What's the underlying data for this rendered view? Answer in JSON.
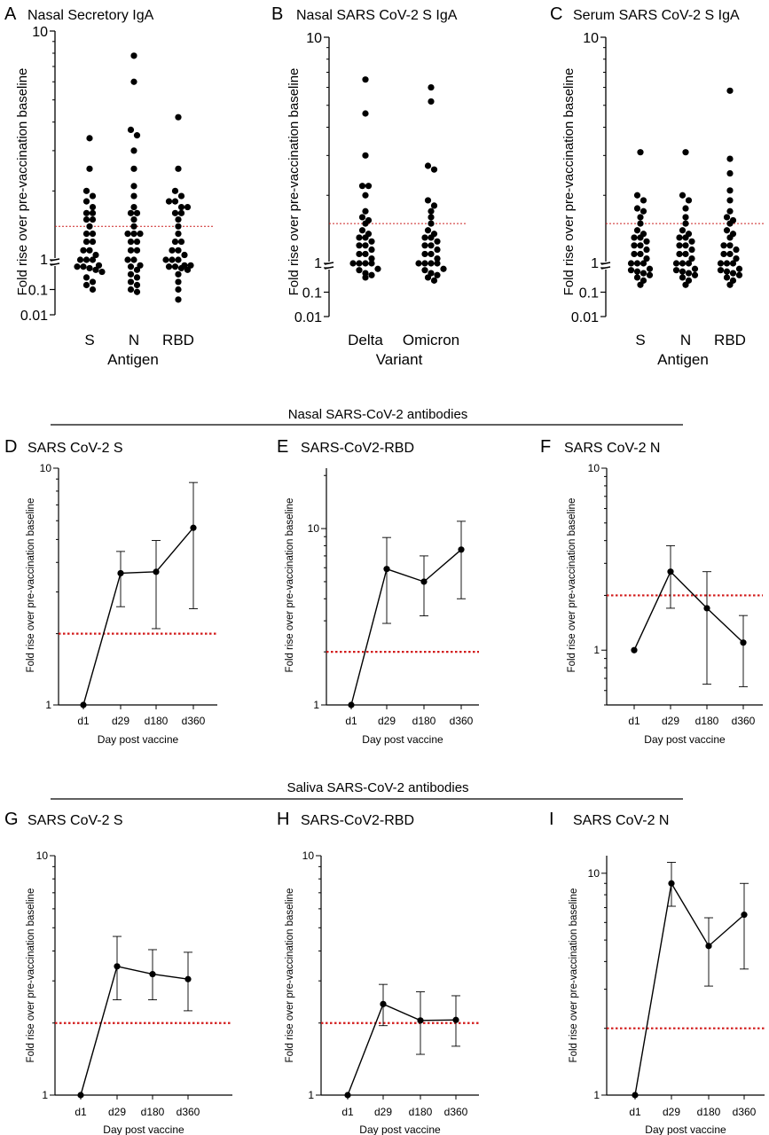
{
  "figure": {
    "section_headers": [
      "Nasal SARS-CoV-2 antibodies",
      "Saliva SARS-CoV-2 antibodies"
    ]
  },
  "chart_data": [
    {
      "panel": "A",
      "type": "scatter",
      "title": "Nasal Secretory IgA",
      "xlabel": "Antigen",
      "ylabel": "Fold rise over pre-vaccination baseline",
      "ytick_labels": [
        "0.01",
        "0.1",
        "1",
        "10"
      ],
      "threshold": 1.4,
      "threshold_color": "#cc2222",
      "series": [
        {
          "category": "S",
          "values": [
            3.4,
            2.5,
            2.0,
            1.9,
            1.8,
            1.7,
            1.6,
            1.6,
            1.5,
            1.5,
            1.4,
            1.3,
            1.3,
            1.2,
            1.2,
            1.1,
            1.1,
            1.05,
            1.0,
            1.0,
            1.0,
            0.9,
            0.8,
            0.8,
            0.7,
            0.6,
            0.5,
            0.3,
            0.2,
            0.15,
            0.1
          ]
        },
        {
          "category": "N",
          "values": [
            7.8,
            6.0,
            3.7,
            3.5,
            3.0,
            2.5,
            2.1,
            1.9,
            1.7,
            1.6,
            1.6,
            1.5,
            1.4,
            1.3,
            1.3,
            1.3,
            1.2,
            1.2,
            1.1,
            1.1,
            1.0,
            1.0,
            0.9,
            0.8,
            0.6,
            0.4,
            0.3,
            0.2,
            0.15,
            0.1,
            0.08
          ]
        },
        {
          "category": "RBD",
          "values": [
            4.2,
            2.5,
            2.0,
            1.9,
            1.8,
            1.8,
            1.7,
            1.7,
            1.6,
            1.6,
            1.5,
            1.4,
            1.3,
            1.2,
            1.2,
            1.1,
            1.1,
            1.05,
            1.0,
            1.0,
            1.0,
            0.9,
            0.9,
            0.8,
            0.8,
            0.7,
            0.6,
            0.4,
            0.2,
            0.1,
            0.04
          ]
        }
      ]
    },
    {
      "panel": "B",
      "type": "scatter",
      "title": "Nasal SARS CoV-2 S IgA",
      "xlabel": "Variant",
      "ylabel": "Fold rise over pre-vaccination baseline",
      "ytick_labels": [
        "0.01",
        "0.1",
        "1",
        "10"
      ],
      "threshold": 1.5,
      "threshold_color": "#cc2222",
      "series": [
        {
          "category": "Delta",
          "values": [
            6.5,
            4.6,
            3.0,
            2.2,
            2.2,
            2.0,
            1.7,
            1.6,
            1.55,
            1.5,
            1.4,
            1.35,
            1.3,
            1.3,
            1.25,
            1.2,
            1.2,
            1.15,
            1.1,
            1.1,
            1.05,
            1.0,
            1.0,
            1.0,
            1.0,
            0.9,
            0.8,
            0.6,
            0.5,
            0.4
          ]
        },
        {
          "category": "Omicron",
          "values": [
            6.0,
            5.2,
            2.7,
            2.6,
            1.9,
            1.8,
            1.7,
            1.6,
            1.5,
            1.4,
            1.35,
            1.3,
            1.3,
            1.25,
            1.2,
            1.2,
            1.15,
            1.1,
            1.1,
            1.05,
            1.0,
            1.0,
            1.0,
            1.0,
            0.9,
            0.8,
            0.6,
            0.5,
            0.4,
            0.3
          ]
        }
      ]
    },
    {
      "panel": "C",
      "type": "scatter",
      "title": "Serum SARS CoV-2 S IgA",
      "xlabel": "Antigen",
      "ylabel": "Fold rise over pre-vaccination baseline",
      "ytick_labels": [
        "0.01",
        "0.1",
        "1",
        "10"
      ],
      "threshold": 1.5,
      "threshold_color": "#cc2222",
      "series": [
        {
          "category": "S",
          "values": [
            3.1,
            2.0,
            1.9,
            1.75,
            1.7,
            1.6,
            1.5,
            1.4,
            1.35,
            1.3,
            1.3,
            1.25,
            1.2,
            1.2,
            1.15,
            1.1,
            1.1,
            1.05,
            1.0,
            1.0,
            1.0,
            0.9,
            0.8,
            0.7,
            0.6,
            0.5,
            0.4,
            0.3,
            0.2
          ]
        },
        {
          "category": "N",
          "values": [
            3.1,
            2.0,
            1.9,
            1.75,
            1.6,
            1.5,
            1.4,
            1.35,
            1.3,
            1.3,
            1.25,
            1.2,
            1.2,
            1.15,
            1.1,
            1.1,
            1.05,
            1.0,
            1.0,
            1.0,
            0.9,
            0.8,
            0.7,
            0.6,
            0.5,
            0.4,
            0.3,
            0.2
          ]
        },
        {
          "category": "RBD",
          "values": [
            5.8,
            2.9,
            2.5,
            2.1,
            1.9,
            1.7,
            1.6,
            1.55,
            1.5,
            1.4,
            1.35,
            1.3,
            1.2,
            1.2,
            1.15,
            1.1,
            1.1,
            1.05,
            1.0,
            1.0,
            1.0,
            0.9,
            0.8,
            0.7,
            0.6,
            0.5,
            0.4,
            0.3,
            0.2
          ]
        }
      ]
    },
    {
      "panel": "D",
      "type": "line",
      "title": "SARS CoV-2 S",
      "xlabel": "Day post vaccine",
      "ylabel": "Fold rise over pre-vaccination baseline",
      "categories": [
        "d1",
        "d29",
        "d180",
        "d360"
      ],
      "ylim": [
        1,
        10
      ],
      "ytick_values": [
        1,
        10
      ],
      "ytick_labels": [
        "1",
        "10"
      ],
      "values": [
        1.0,
        3.6,
        3.65,
        5.6
      ],
      "err_low": [
        1.0,
        2.6,
        2.1,
        2.55
      ],
      "err_high": [
        1.0,
        4.45,
        4.95,
        8.7
      ],
      "threshold": 2.0
    },
    {
      "panel": "E",
      "type": "line",
      "title": "SARS-CoV2-RBD",
      "xlabel": "Day post vaccine",
      "ylabel": "Fold rise over pre-vaccination baseline",
      "categories": [
        "d1",
        "d29",
        "d180",
        "d360"
      ],
      "ylim": [
        1,
        22
      ],
      "ytick_values": [
        1,
        10
      ],
      "ytick_labels": [
        "1",
        "10"
      ],
      "values": [
        1.0,
        5.9,
        5.0,
        7.6
      ],
      "err_low": [
        1.0,
        2.9,
        3.2,
        4.0
      ],
      "err_high": [
        1.0,
        8.9,
        7.0,
        11.0
      ],
      "threshold": 2.0
    },
    {
      "panel": "F",
      "type": "line",
      "title": "SARS CoV-2 N",
      "xlabel": "Day post vaccine",
      "ylabel": "Fold rise over pre-vaccination baseline",
      "categories": [
        "d1",
        "d29",
        "d180",
        "d360"
      ],
      "ylim": [
        0.5,
        10
      ],
      "ytick_values": [
        1,
        10
      ],
      "ytick_labels": [
        "1",
        "10"
      ],
      "values": [
        1.0,
        2.7,
        1.7,
        1.1
      ],
      "err_low": [
        1.0,
        1.7,
        0.65,
        0.63
      ],
      "err_high": [
        1.0,
        3.75,
        2.7,
        1.55
      ],
      "threshold": 2.0
    },
    {
      "panel": "G",
      "type": "line",
      "title": "SARS CoV-2 S",
      "xlabel": "Day post vaccine",
      "ylabel": "Fold rise over pre-vaccination baseline",
      "categories": [
        "d1",
        "d29",
        "d180",
        "d360"
      ],
      "ylim": [
        1,
        10
      ],
      "ytick_values": [
        1,
        10
      ],
      "ytick_labels": [
        "1",
        "10"
      ],
      "values": [
        1.0,
        3.45,
        3.2,
        3.05
      ],
      "err_low": [
        1.0,
        2.5,
        2.5,
        2.25
      ],
      "err_high": [
        1.0,
        4.6,
        4.05,
        3.95
      ],
      "threshold": 2.0
    },
    {
      "panel": "H",
      "type": "line",
      "title": "SARS-CoV2-RBD",
      "xlabel": "Day post vaccine",
      "ylabel": "Fold rise over pre-vaccination baseline",
      "categories": [
        "d1",
        "d29",
        "d180",
        "d360"
      ],
      "ylim": [
        1,
        10
      ],
      "ytick_values": [
        1,
        10
      ],
      "ytick_labels": [
        "1",
        "10"
      ],
      "values": [
        1.0,
        2.4,
        2.05,
        2.06
      ],
      "err_low": [
        1.0,
        1.95,
        1.48,
        1.6
      ],
      "err_high": [
        1.0,
        2.9,
        2.7,
        2.6
      ],
      "threshold": 2.0
    },
    {
      "panel": "I",
      "type": "line",
      "title": "SARS CoV-2 N",
      "xlabel": "Day post vaccine",
      "ylabel": "Fold rise over pre-vaccination baseline",
      "categories": [
        "d1",
        "d29",
        "d180",
        "d360"
      ],
      "ylim": [
        1,
        12
      ],
      "ytick_values": [
        1,
        10
      ],
      "ytick_labels": [
        "1",
        "10"
      ],
      "values": [
        1.0,
        9.0,
        4.7,
        6.5
      ],
      "err_low": [
        1.0,
        7.1,
        3.1,
        3.7
      ],
      "err_high": [
        1.0,
        11.2,
        6.3,
        9.0
      ],
      "threshold": 2.0
    }
  ]
}
